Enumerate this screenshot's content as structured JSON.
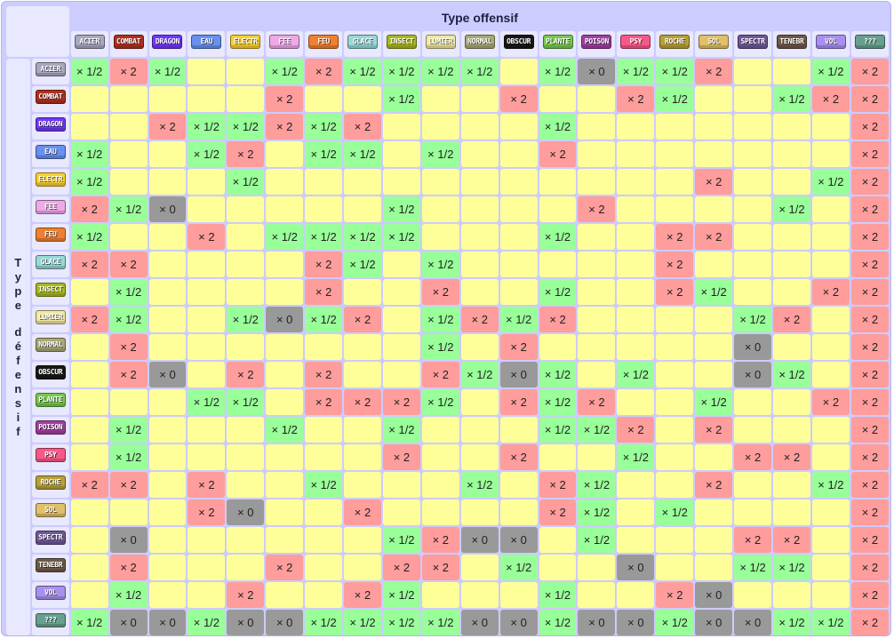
{
  "header": {
    "title": "Type offensif",
    "side_title_words": [
      "Type",
      "défensif"
    ]
  },
  "types": [
    {
      "label": "ACIER",
      "color": "#a8a8c0"
    },
    {
      "label": "COMBAT",
      "color": "#b03020"
    },
    {
      "label": "DRAGON",
      "color": "#7038f8"
    },
    {
      "label": "EAU",
      "color": "#6890f0"
    },
    {
      "label": "ELECTR",
      "color": "#f8d030"
    },
    {
      "label": "FEE",
      "color": "#f0a8e8"
    },
    {
      "label": "FEU",
      "color": "#f08030"
    },
    {
      "label": "GLACE",
      "color": "#98d8d8"
    },
    {
      "label": "INSECT",
      "color": "#a8b820"
    },
    {
      "label": "LUMIER",
      "color": "#f0e8a0"
    },
    {
      "label": "NORMAL",
      "color": "#a8a878"
    },
    {
      "label": "OBSCUR",
      "color": "#181818"
    },
    {
      "label": "PLANTE",
      "color": "#78c850"
    },
    {
      "label": "POISON",
      "color": "#a040a0"
    },
    {
      "label": "PSY",
      "color": "#f85888"
    },
    {
      "label": "ROCHE",
      "color": "#b8a038"
    },
    {
      "label": "SOL",
      "color": "#e0c068"
    },
    {
      "label": "SPECTR",
      "color": "#705898"
    },
    {
      "label": "TENEBR",
      "color": "#705848"
    },
    {
      "label": "VOL",
      "color": "#a890f0"
    },
    {
      "label": "???",
      "color": "#68a090"
    }
  ],
  "multipliers": {
    "2": {
      "text": "× 2",
      "color": "#ff9c9c"
    },
    "h": {
      "text": "× 1/2",
      "color": "#99ff99"
    },
    "0": {
      "text": "× 0",
      "color": "#999999"
    },
    "1": {
      "text": "",
      "color": "#ffff99"
    }
  },
  "grid": [
    [
      "h",
      "2",
      "h",
      "1",
      "1",
      "h",
      "2",
      "h",
      "h",
      "h",
      "h",
      "1",
      "h",
      "0",
      "h",
      "h",
      "2",
      "1",
      "1",
      "h",
      "2"
    ],
    [
      "1",
      "1",
      "1",
      "1",
      "1",
      "2",
      "1",
      "1",
      "h",
      "1",
      "1",
      "2",
      "1",
      "1",
      "2",
      "h",
      "1",
      "1",
      "h",
      "2",
      "2"
    ],
    [
      "1",
      "1",
      "2",
      "h",
      "h",
      "2",
      "h",
      "2",
      "1",
      "1",
      "1",
      "1",
      "h",
      "1",
      "1",
      "1",
      "1",
      "1",
      "1",
      "1",
      "2"
    ],
    [
      "h",
      "1",
      "1",
      "h",
      "2",
      "1",
      "h",
      "h",
      "1",
      "h",
      "1",
      "1",
      "2",
      "1",
      "1",
      "1",
      "1",
      "1",
      "1",
      "1",
      "2"
    ],
    [
      "h",
      "1",
      "1",
      "1",
      "h",
      "1",
      "1",
      "1",
      "1",
      "1",
      "1",
      "1",
      "1",
      "1",
      "1",
      "1",
      "2",
      "1",
      "1",
      "h",
      "2"
    ],
    [
      "2",
      "h",
      "0",
      "1",
      "1",
      "1",
      "1",
      "1",
      "h",
      "1",
      "1",
      "1",
      "1",
      "2",
      "1",
      "1",
      "1",
      "1",
      "h",
      "1",
      "2"
    ],
    [
      "h",
      "1",
      "1",
      "2",
      "1",
      "h",
      "h",
      "h",
      "h",
      "1",
      "1",
      "1",
      "h",
      "1",
      "1",
      "2",
      "2",
      "1",
      "1",
      "1",
      "2"
    ],
    [
      "2",
      "2",
      "1",
      "1",
      "1",
      "1",
      "2",
      "h",
      "1",
      "h",
      "1",
      "1",
      "1",
      "1",
      "1",
      "2",
      "1",
      "1",
      "1",
      "1",
      "2"
    ],
    [
      "1",
      "h",
      "1",
      "1",
      "1",
      "1",
      "2",
      "1",
      "1",
      "2",
      "1",
      "1",
      "h",
      "1",
      "1",
      "2",
      "h",
      "1",
      "1",
      "2",
      "2"
    ],
    [
      "2",
      "h",
      "1",
      "1",
      "h",
      "0",
      "h",
      "2",
      "1",
      "h",
      "2",
      "h",
      "2",
      "1",
      "1",
      "1",
      "1",
      "h",
      "2",
      "1",
      "2"
    ],
    [
      "1",
      "2",
      "1",
      "1",
      "1",
      "1",
      "1",
      "1",
      "1",
      "h",
      "1",
      "2",
      "1",
      "1",
      "1",
      "1",
      "1",
      "0",
      "1",
      "1",
      "2"
    ],
    [
      "1",
      "2",
      "0",
      "1",
      "2",
      "1",
      "2",
      "1",
      "1",
      "2",
      "h",
      "0",
      "h",
      "1",
      "h",
      "1",
      "1",
      "0",
      "h",
      "1",
      "2"
    ],
    [
      "1",
      "1",
      "1",
      "h",
      "h",
      "1",
      "2",
      "2",
      "2",
      "h",
      "1",
      "2",
      "h",
      "2",
      "1",
      "1",
      "h",
      "1",
      "1",
      "2",
      "2"
    ],
    [
      "1",
      "h",
      "1",
      "1",
      "1",
      "h",
      "1",
      "1",
      "h",
      "1",
      "1",
      "1",
      "h",
      "h",
      "2",
      "1",
      "2",
      "1",
      "1",
      "1",
      "2"
    ],
    [
      "1",
      "h",
      "1",
      "1",
      "1",
      "1",
      "1",
      "1",
      "2",
      "1",
      "1",
      "2",
      "1",
      "1",
      "h",
      "1",
      "1",
      "2",
      "2",
      "1",
      "2"
    ],
    [
      "2",
      "2",
      "1",
      "2",
      "1",
      "1",
      "h",
      "1",
      "1",
      "1",
      "h",
      "1",
      "2",
      "h",
      "1",
      "1",
      "2",
      "1",
      "1",
      "h",
      "2"
    ],
    [
      "1",
      "1",
      "1",
      "2",
      "0",
      "1",
      "1",
      "2",
      "1",
      "1",
      "1",
      "1",
      "2",
      "h",
      "1",
      "h",
      "1",
      "1",
      "1",
      "1",
      "2"
    ],
    [
      "1",
      "0",
      "1",
      "1",
      "1",
      "1",
      "1",
      "1",
      "h",
      "2",
      "0",
      "0",
      "1",
      "h",
      "1",
      "1",
      "1",
      "2",
      "2",
      "1",
      "2"
    ],
    [
      "1",
      "2",
      "1",
      "1",
      "1",
      "2",
      "1",
      "1",
      "2",
      "2",
      "1",
      "h",
      "1",
      "1",
      "0",
      "1",
      "1",
      "h",
      "h",
      "1",
      "2"
    ],
    [
      "1",
      "h",
      "1",
      "1",
      "2",
      "1",
      "1",
      "2",
      "h",
      "1",
      "1",
      "1",
      "h",
      "1",
      "1",
      "2",
      "0",
      "1",
      "1",
      "1",
      "2"
    ],
    [
      "h",
      "0",
      "0",
      "h",
      "0",
      "0",
      "h",
      "h",
      "h",
      "h",
      "0",
      "0",
      "h",
      "0",
      "0",
      "h",
      "0",
      "0",
      "h",
      "h",
      "2"
    ]
  ]
}
